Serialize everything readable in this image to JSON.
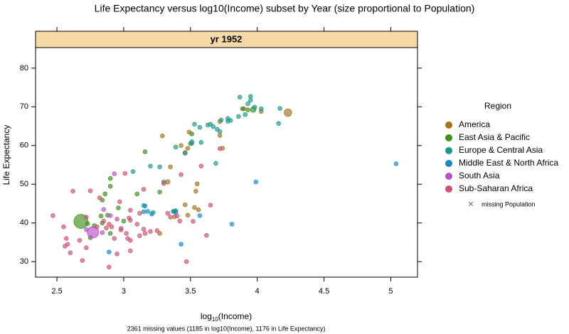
{
  "chart_data": {
    "type": "scatter",
    "title": "Life Expectancy versus log10(Income) subset by Year (size proportional to Population)",
    "strip": "yr 1952",
    "xlabel": [
      "log",
      "10",
      "(Income)"
    ],
    "ylabel": "Life Expectancy",
    "footnote": "2361 missing values (1185 in log10(Income), 1176 in Life Expectancy)",
    "legend_title": "Region",
    "missing_note": "missing Population",
    "xlim": [
      2.34,
      5.2
    ],
    "ylim": [
      26,
      85.3
    ],
    "xticks": [
      2.5,
      3,
      3.5,
      4,
      4.5,
      5
    ],
    "yticks": [
      30,
      40,
      50,
      60,
      70,
      80
    ],
    "series": [
      {
        "name": "America",
        "color": "#a0761a",
        "x": [
          3.33,
          3.29,
          3.49,
          3.46,
          3.48,
          3.55,
          3.54,
          3.46,
          3.48,
          3.56,
          3.38,
          3.27,
          3.74,
          3.72,
          3.72,
          3.9,
          4.03,
          4.23,
          3.43,
          3.35,
          3.53
        ],
        "y": [
          50.6,
          62.5,
          63.5,
          58.2,
          59.3,
          50.1,
          48.2,
          44.7,
          42,
          43.4,
          41.6,
          37.3,
          59.3,
          62.6,
          66.2,
          69.5,
          68.8,
          68.5,
          60,
          54.5,
          44
        ],
        "size": [
          56,
          5,
          5,
          5,
          5,
          30,
          5,
          5,
          5,
          5,
          5,
          5,
          5,
          18,
          5,
          5,
          14,
          157,
          5,
          5,
          5
        ]
      },
      {
        "name": "East Asia & Pacific",
        "color": "#3d8f1f",
        "x": [
          2.68,
          3.97,
          2.9,
          2.9,
          2.86,
          2.84,
          2.96,
          2.88,
          2.84,
          2.78,
          2.75,
          2.9,
          3.1,
          3.16,
          3.27,
          3.51,
          3.38,
          3.5,
          3.89,
          3.93,
          2.73,
          2.83,
          3.0
        ],
        "y": [
          40.4,
          69.3,
          51.5,
          49.5,
          47.5,
          45.9,
          43.9,
          42,
          40,
          39.3,
          36.2,
          37.3,
          47.5,
          58.4,
          48,
          63,
          43,
          60.5,
          69.5,
          69.2,
          39.8,
          41.8,
          40.5
        ],
        "size": [
          556,
          86,
          5,
          5,
          5,
          5,
          5,
          5,
          5,
          5,
          5,
          22,
          5,
          5,
          5,
          20,
          5,
          5,
          8,
          5,
          5,
          5,
          5
        ]
      },
      {
        "name": "Europe & Central Asia",
        "color": "#1b9988",
        "x": [
          3.87,
          3.95,
          3.95,
          3.93,
          3.98,
          4.17,
          4.03,
          3.86,
          3.91,
          3.78,
          3.78,
          3.73,
          3.67,
          3.63,
          3.65,
          3.7,
          3.72,
          3.53,
          3.57,
          3.58,
          3.51,
          3.51,
          3.39,
          3.2,
          3.27,
          3.07,
          3.46,
          3.69,
          4.16,
          3.3,
          3.37,
          3.39,
          3.22,
          3.15,
          3.8
        ],
        "y": [
          72.5,
          72.7,
          71.7,
          70.8,
          69.9,
          69.6,
          69.5,
          67.5,
          68,
          66.3,
          67,
          66.6,
          64.9,
          65.3,
          65.5,
          64.2,
          63.6,
          65.5,
          64.7,
          60.8,
          61,
          60.6,
          59.6,
          54.7,
          54.5,
          53.3,
          58,
          55.4,
          65.7,
          50.6,
          43,
          43.2,
          42.7,
          44.5,
          66.5
        ],
        "size": [
          5,
          5,
          5,
          5,
          50,
          5,
          5,
          5,
          5,
          5,
          5,
          42,
          5,
          5,
          5,
          47,
          5,
          5,
          5,
          5,
          5,
          5,
          5,
          5,
          5,
          5,
          5,
          5,
          5,
          5,
          21,
          5,
          5,
          5,
          5
        ]
      },
      {
        "name": "Middle East & North Africa",
        "color": "#1a88c4",
        "x": [
          5.04,
          3.99,
          3.81,
          3.57,
          3.43,
          3.39,
          3.21,
          3.18,
          3.15,
          2.89,
          3.16
        ],
        "y": [
          55.3,
          50.6,
          39.7,
          41.9,
          34.5,
          42.7,
          42.3,
          43,
          42.9,
          32.5,
          44.4
        ],
        "size": [
          5,
          5,
          5,
          5,
          5,
          22,
          5,
          5,
          5,
          5,
          5
        ]
      },
      {
        "name": "South Asia",
        "color": "#b84fc6",
        "x": [
          2.77,
          2.93,
          2.9,
          2.84,
          2.72,
          2.85
        ],
        "y": [
          37.6,
          52.7,
          41.9,
          37.5,
          38.3,
          43.5
        ],
        "size": [
          372,
          5,
          5,
          5,
          5,
          5
        ]
      },
      {
        "name": "Sub-Saharan Africa",
        "color": "#cc5272",
        "x": [
          2.47,
          2.55,
          2.57,
          2.56,
          2.58,
          2.6,
          2.62,
          2.67,
          2.69,
          2.72,
          2.75,
          2.72,
          2.8,
          2.82,
          2.85,
          2.87,
          2.89,
          2.89,
          2.91,
          2.93,
          2.95,
          2.95,
          2.97,
          2.98,
          3.02,
          3.03,
          3.05,
          3.04,
          3.05,
          3.05,
          3.05,
          3.1,
          3.12,
          3.12,
          3.15,
          3.16,
          3.2,
          3.25,
          3.3,
          3.33,
          3.35,
          3.4,
          3.42,
          3.43,
          3.47,
          3.52,
          3.58,
          3.62,
          3.65,
          3.72,
          2.98,
          3.01,
          3.15
        ],
        "y": [
          41.9,
          39,
          36,
          34,
          34.5,
          32.3,
          48.2,
          35.5,
          30.3,
          33.6,
          48.3,
          41.5,
          39,
          46.5,
          40.5,
          38.7,
          28.6,
          39.7,
          39,
          36,
          32,
          41,
          45.5,
          38.2,
          37.3,
          36,
          35.5,
          41.3,
          40.7,
          43.3,
          32.8,
          39.7,
          42.5,
          36.7,
          38.4,
          37.3,
          37.8,
          38,
          50.2,
          42.5,
          41.5,
          41.8,
          40.5,
          52.5,
          30,
          40.4,
          54.7,
          36.8,
          44.6,
          59.2,
          38.6,
          52.8,
          48.7
        ],
        "size": [
          5,
          5,
          5,
          5,
          5,
          5,
          5,
          12,
          5,
          5,
          5,
          5,
          5,
          5,
          5,
          5,
          5,
          5,
          5,
          5,
          5,
          5,
          5,
          5,
          5,
          5,
          5,
          5,
          5,
          5,
          5,
          5,
          5,
          5,
          5,
          5,
          5,
          5,
          5,
          5,
          5,
          5,
          5,
          5,
          5,
          5,
          5,
          5,
          5,
          5,
          5,
          5,
          5
        ]
      }
    ]
  }
}
